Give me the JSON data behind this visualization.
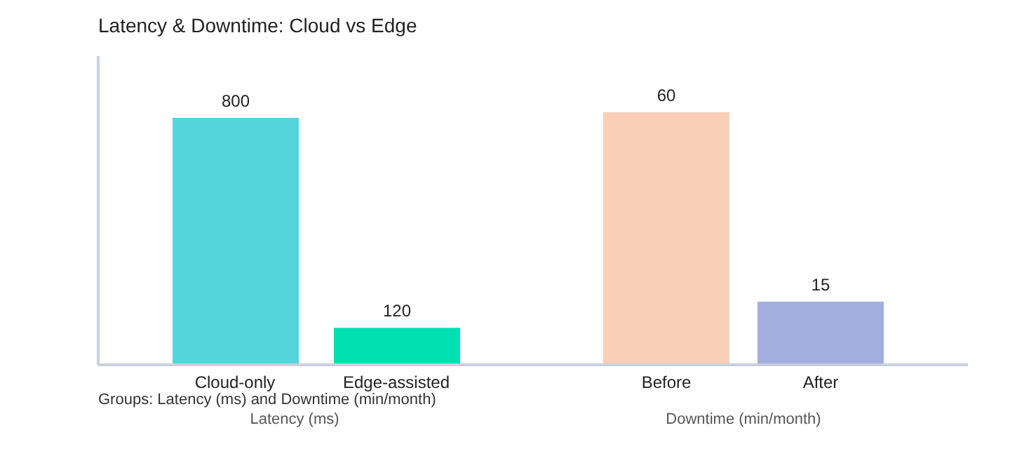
{
  "chart_data": [
    {
      "type": "bar",
      "title": "Latency & Downtime: Cloud vs Edge",
      "categories": [
        "Cloud-only",
        "Edge-assisted"
      ],
      "values": [
        800,
        120
      ],
      "colors": [
        "#56d4dc",
        "#00e0b0"
      ],
      "ylim": [
        0,
        1000
      ],
      "xlabel": "Latency (ms)",
      "annotations": [
        "Groups: Latency (ms) and Downtime (min/month)"
      ],
      "data_labels": true,
      "tick_labels": "x",
      "grid": false,
      "legend": false
    },
    {
      "type": "bar",
      "categories": [
        "Before",
        "After"
      ],
      "values": [
        60,
        15
      ],
      "colors": [
        "#f9cfb8",
        "#a3aee0"
      ],
      "xlabel": "Downtime (min/month)",
      "data_labels": true,
      "tick_labels": "x",
      "grid": false,
      "legend": false
    }
  ]
}
